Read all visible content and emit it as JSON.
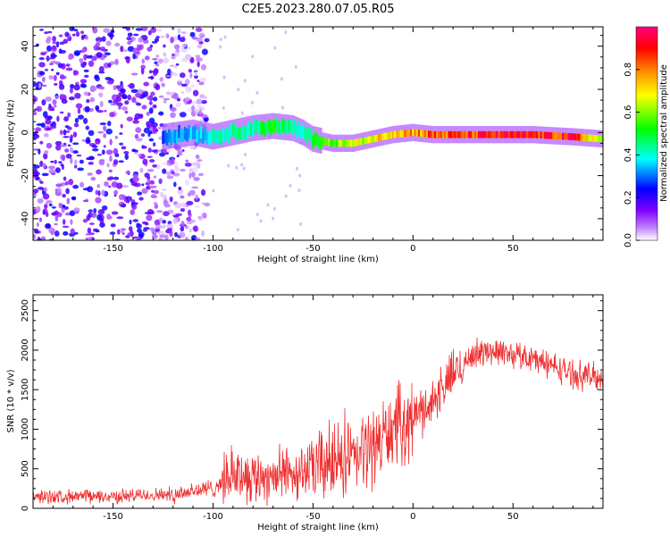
{
  "title": "C2E5.2023.280.07.05.R05",
  "chart_data": [
    {
      "type": "heatmap",
      "xlabel": "Height of straight line (km)",
      "ylabel": "Frequency (Hz)",
      "xlim": [
        -190,
        95
      ],
      "ylim": [
        -50,
        49
      ],
      "xticks": [
        -150,
        -100,
        -50,
        0,
        50
      ],
      "yticks": [
        -40,
        -20,
        0,
        20,
        40
      ],
      "grid": false,
      "colorbar": {
        "label": "Normalized spectral amplitude",
        "range": [
          0,
          1
        ],
        "ticks": [
          "0.0",
          "0.2",
          "0.4",
          "0.6",
          "0.8"
        ],
        "colors": [
          "#ffffff",
          "#8000ff",
          "#0000ff",
          "#00ffff",
          "#00ff00",
          "#ffff00",
          "#ff8000",
          "#ff0000",
          "#ff0080"
        ]
      },
      "ridge": {
        "x": [
          -125,
          -110,
          -100,
          -90,
          -80,
          -70,
          -60,
          -55,
          -50,
          -40,
          -30,
          -20,
          -10,
          0,
          10,
          20,
          40,
          60,
          80,
          95
        ],
        "frequency": [
          -2,
          0,
          -2,
          0,
          2,
          3,
          2,
          0,
          -3,
          -5,
          -5,
          -3,
          -1,
          0,
          -1,
          -1,
          -1,
          -1,
          -2,
          -3
        ],
        "amplitude": [
          0.3,
          0.35,
          0.4,
          0.45,
          0.45,
          0.5,
          0.45,
          0.4,
          0.5,
          0.6,
          0.65,
          0.7,
          0.8,
          0.8,
          0.85,
          0.85,
          0.9,
          0.9,
          0.9,
          0.6
        ]
      },
      "noise_region_x": [
        -190,
        -103
      ]
    },
    {
      "type": "line",
      "xlabel": "Height of straight line (km)",
      "ylabel": "SNR (10 * v/v)",
      "xlim": [
        -190,
        95
      ],
      "ylim": [
        0,
        2700
      ],
      "xticks": [
        -150,
        -100,
        -50,
        0,
        50
      ],
      "yticks": [
        0,
        500,
        1000,
        1500,
        2000,
        2500
      ],
      "grid": false,
      "series": [
        {
          "color": "#f03030",
          "trend": {
            "x": [
              -190,
              -150,
              -120,
              -110,
              -100,
              -90,
              -80,
              -70,
              -60,
              -50,
              -40,
              -30,
              -20,
              -10,
              0,
              10,
              20,
              30,
              40,
              50,
              60,
              70,
              80,
              95
            ],
            "y": [
              150,
              150,
              180,
              220,
              250,
              450,
              400,
              420,
              450,
              500,
              600,
              600,
              800,
              1000,
              1150,
              1350,
              1700,
              1950,
              2000,
              1950,
              1900,
              1800,
              1700,
              1650
            ]
          }
        }
      ]
    }
  ]
}
